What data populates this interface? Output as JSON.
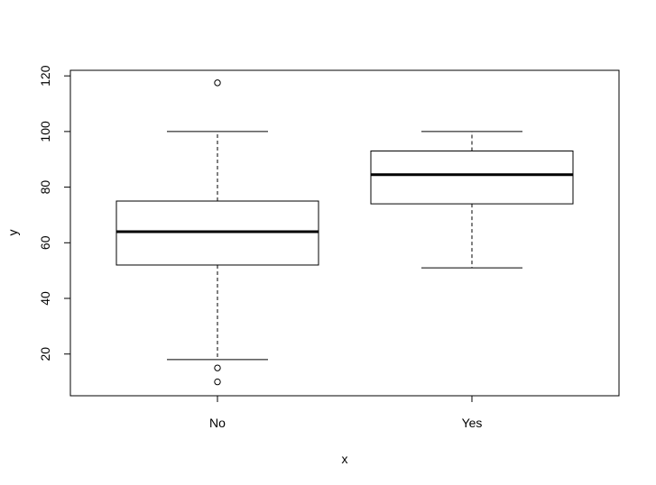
{
  "chart_data": {
    "type": "boxplot",
    "title": "",
    "xlabel": "x",
    "ylabel": "y",
    "categories": [
      "No",
      "Yes"
    ],
    "boxes": [
      {
        "category": "No",
        "whisker_low": 18,
        "q1": 52,
        "median": 64,
        "q3": 75,
        "whisker_high": 100,
        "outliers": [
          117.5,
          15,
          10
        ]
      },
      {
        "category": "Yes",
        "whisker_low": 51,
        "q1": 74,
        "median": 84.5,
        "q3": 93,
        "whisker_high": 100,
        "outliers": []
      }
    ],
    "yticks": [
      "20",
      "40",
      "60",
      "80",
      "100",
      "120"
    ],
    "ylim": [
      5,
      122
    ],
    "grid": false,
    "colors": {
      "box_fill": "#ffffff",
      "line": "#000000"
    }
  }
}
